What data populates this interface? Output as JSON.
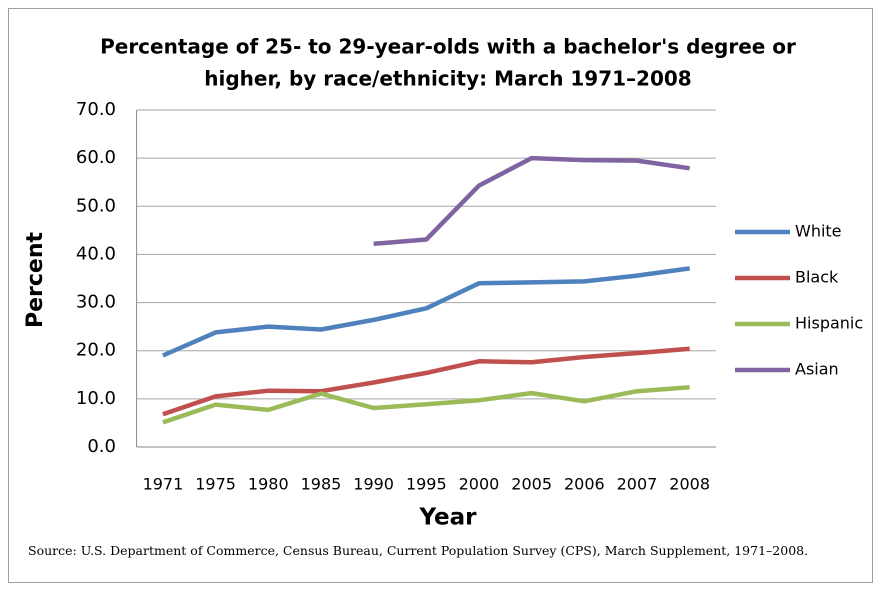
{
  "chart_data": {
    "type": "line",
    "title": [
      "Percentage of 25- to 29-year-olds with a bachelor's degree or",
      "higher, by race/ethnicity: March 1971–2008"
    ],
    "xlabel": "Year",
    "ylabel": "Percent",
    "categories": [
      "1971",
      "1975",
      "1980",
      "1985",
      "1990",
      "1995",
      "2000",
      "2005",
      "2006",
      "2007",
      "2008"
    ],
    "series": [
      {
        "name": "White",
        "color": "#4f81bd",
        "values": [
          19.0,
          23.8,
          25.0,
          24.4,
          26.4,
          28.8,
          34.0,
          34.2,
          34.4,
          35.6,
          37.1
        ]
      },
      {
        "name": "Black",
        "color": "#c0504d",
        "values": [
          6.8,
          10.5,
          11.7,
          11.6,
          13.4,
          15.4,
          17.8,
          17.6,
          18.7,
          19.5,
          20.4
        ]
      },
      {
        "name": "Hispanic",
        "color": "#9bbb59",
        "values": [
          5.1,
          8.8,
          7.7,
          11.1,
          8.1,
          8.9,
          9.7,
          11.2,
          9.5,
          11.6,
          12.4
        ]
      },
      {
        "name": "Asian",
        "color": "#8064a2",
        "values": [
          null,
          null,
          null,
          null,
          42.2,
          43.1,
          54.3,
          60.0,
          59.6,
          59.5,
          57.9
        ]
      }
    ],
    "ylim": [
      0,
      70
    ],
    "yticks": [
      {
        "value": 0,
        "label": "0.0"
      },
      {
        "value": 10,
        "label": "10.0"
      },
      {
        "value": 20,
        "label": "20.0"
      },
      {
        "value": 30,
        "label": "30.0"
      },
      {
        "value": 40,
        "label": "40.0"
      },
      {
        "value": 50,
        "label": "50.0"
      },
      {
        "value": 60,
        "label": "60.0"
      },
      {
        "value": 70,
        "label": "70.0"
      }
    ],
    "grid": true,
    "legend": "right",
    "source": "Source: U.S. Department of Commerce, Census Bureau, Current Population Survey (CPS),  March Supplement, 1971–2008."
  }
}
